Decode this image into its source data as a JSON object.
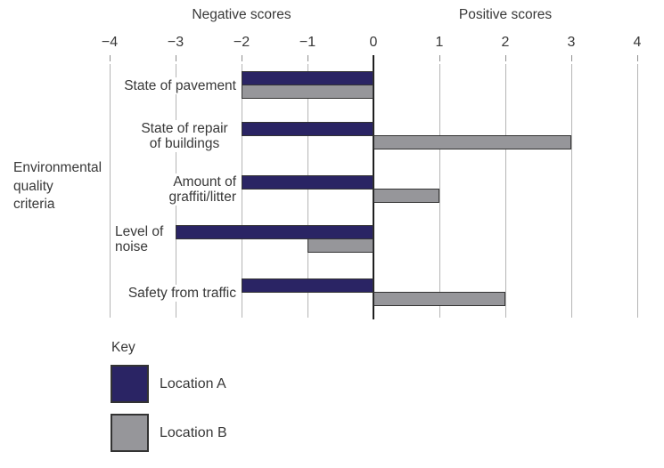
{
  "figure": {
    "negative_header": "Negative scores",
    "positive_header": "Positive scores",
    "y_axis_label": "Environmental\nquality\ncriteria",
    "legend": {
      "title": "Key",
      "entries": [
        {
          "label": "Location A",
          "color": "#2a2464"
        },
        {
          "label": "Location B",
          "color": "#96969a"
        }
      ]
    }
  },
  "chart_data": {
    "type": "bar",
    "orientation": "horizontal-diverging",
    "title": "",
    "xlabel_negative": "Negative scores",
    "xlabel_positive": "Positive scores",
    "ylabel": "Environmental quality criteria",
    "categories": [
      "State of pavement",
      "State of repair\nof buildings",
      "Amount of\ngraffiti/litter",
      "Level of\nnoise",
      "Safety from traffic"
    ],
    "series": [
      {
        "name": "Location A",
        "color": "#2a2464",
        "values": [
          -2,
          -2,
          -2,
          -3,
          -2
        ]
      },
      {
        "name": "Location B",
        "color": "#96969a",
        "values": [
          -2,
          3,
          1,
          -1,
          2
        ]
      }
    ],
    "xlim": [
      -4,
      4
    ],
    "x_ticks": [
      -4,
      -3,
      -2,
      -1,
      0,
      1,
      2,
      3,
      4
    ],
    "x_tick_labels": [
      "−4",
      "−3",
      "−2",
      "−1",
      "0",
      "1",
      "2",
      "3",
      "4"
    ],
    "grid": true,
    "zero_axis_color": "#1f1f1f",
    "gridline_color": "#b5b5b5",
    "bar_border_color": "#333333",
    "legend_position": "bottom-left"
  }
}
